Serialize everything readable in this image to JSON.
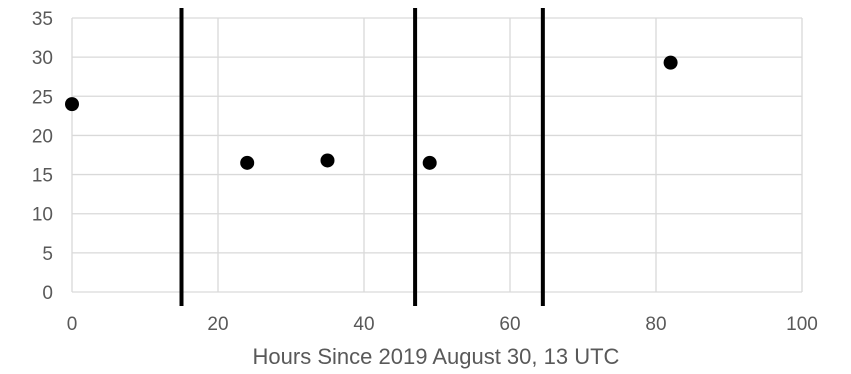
{
  "chart_data": {
    "type": "scatter",
    "title": "",
    "xlabel": "Hours Since 2019 August 30, 13 UTC",
    "ylabel": "",
    "xlim": [
      0,
      100
    ],
    "ylim": [
      0,
      35
    ],
    "x_ticks": [
      0,
      20,
      40,
      60,
      80,
      100
    ],
    "y_ticks": [
      0,
      5,
      10,
      15,
      20,
      25,
      30,
      35
    ],
    "x_tick_labels": [
      "0",
      "20",
      "40",
      "60",
      "80",
      "100"
    ],
    "y_tick_labels": [
      "0",
      "5",
      "10",
      "15",
      "20",
      "25",
      "30",
      "35"
    ],
    "grid": true,
    "legend": "none",
    "colors": {
      "points": "#000000",
      "vlines": "#000000",
      "grid": "#d9d9d9",
      "ticks": "#595959"
    },
    "series": [
      {
        "x": [
          0,
          24,
          35,
          49,
          82
        ],
        "y": [
          24,
          16.5,
          16.8,
          16.5,
          29.3
        ]
      }
    ],
    "vertical_lines": [
      15,
      47,
      64.5
    ]
  }
}
